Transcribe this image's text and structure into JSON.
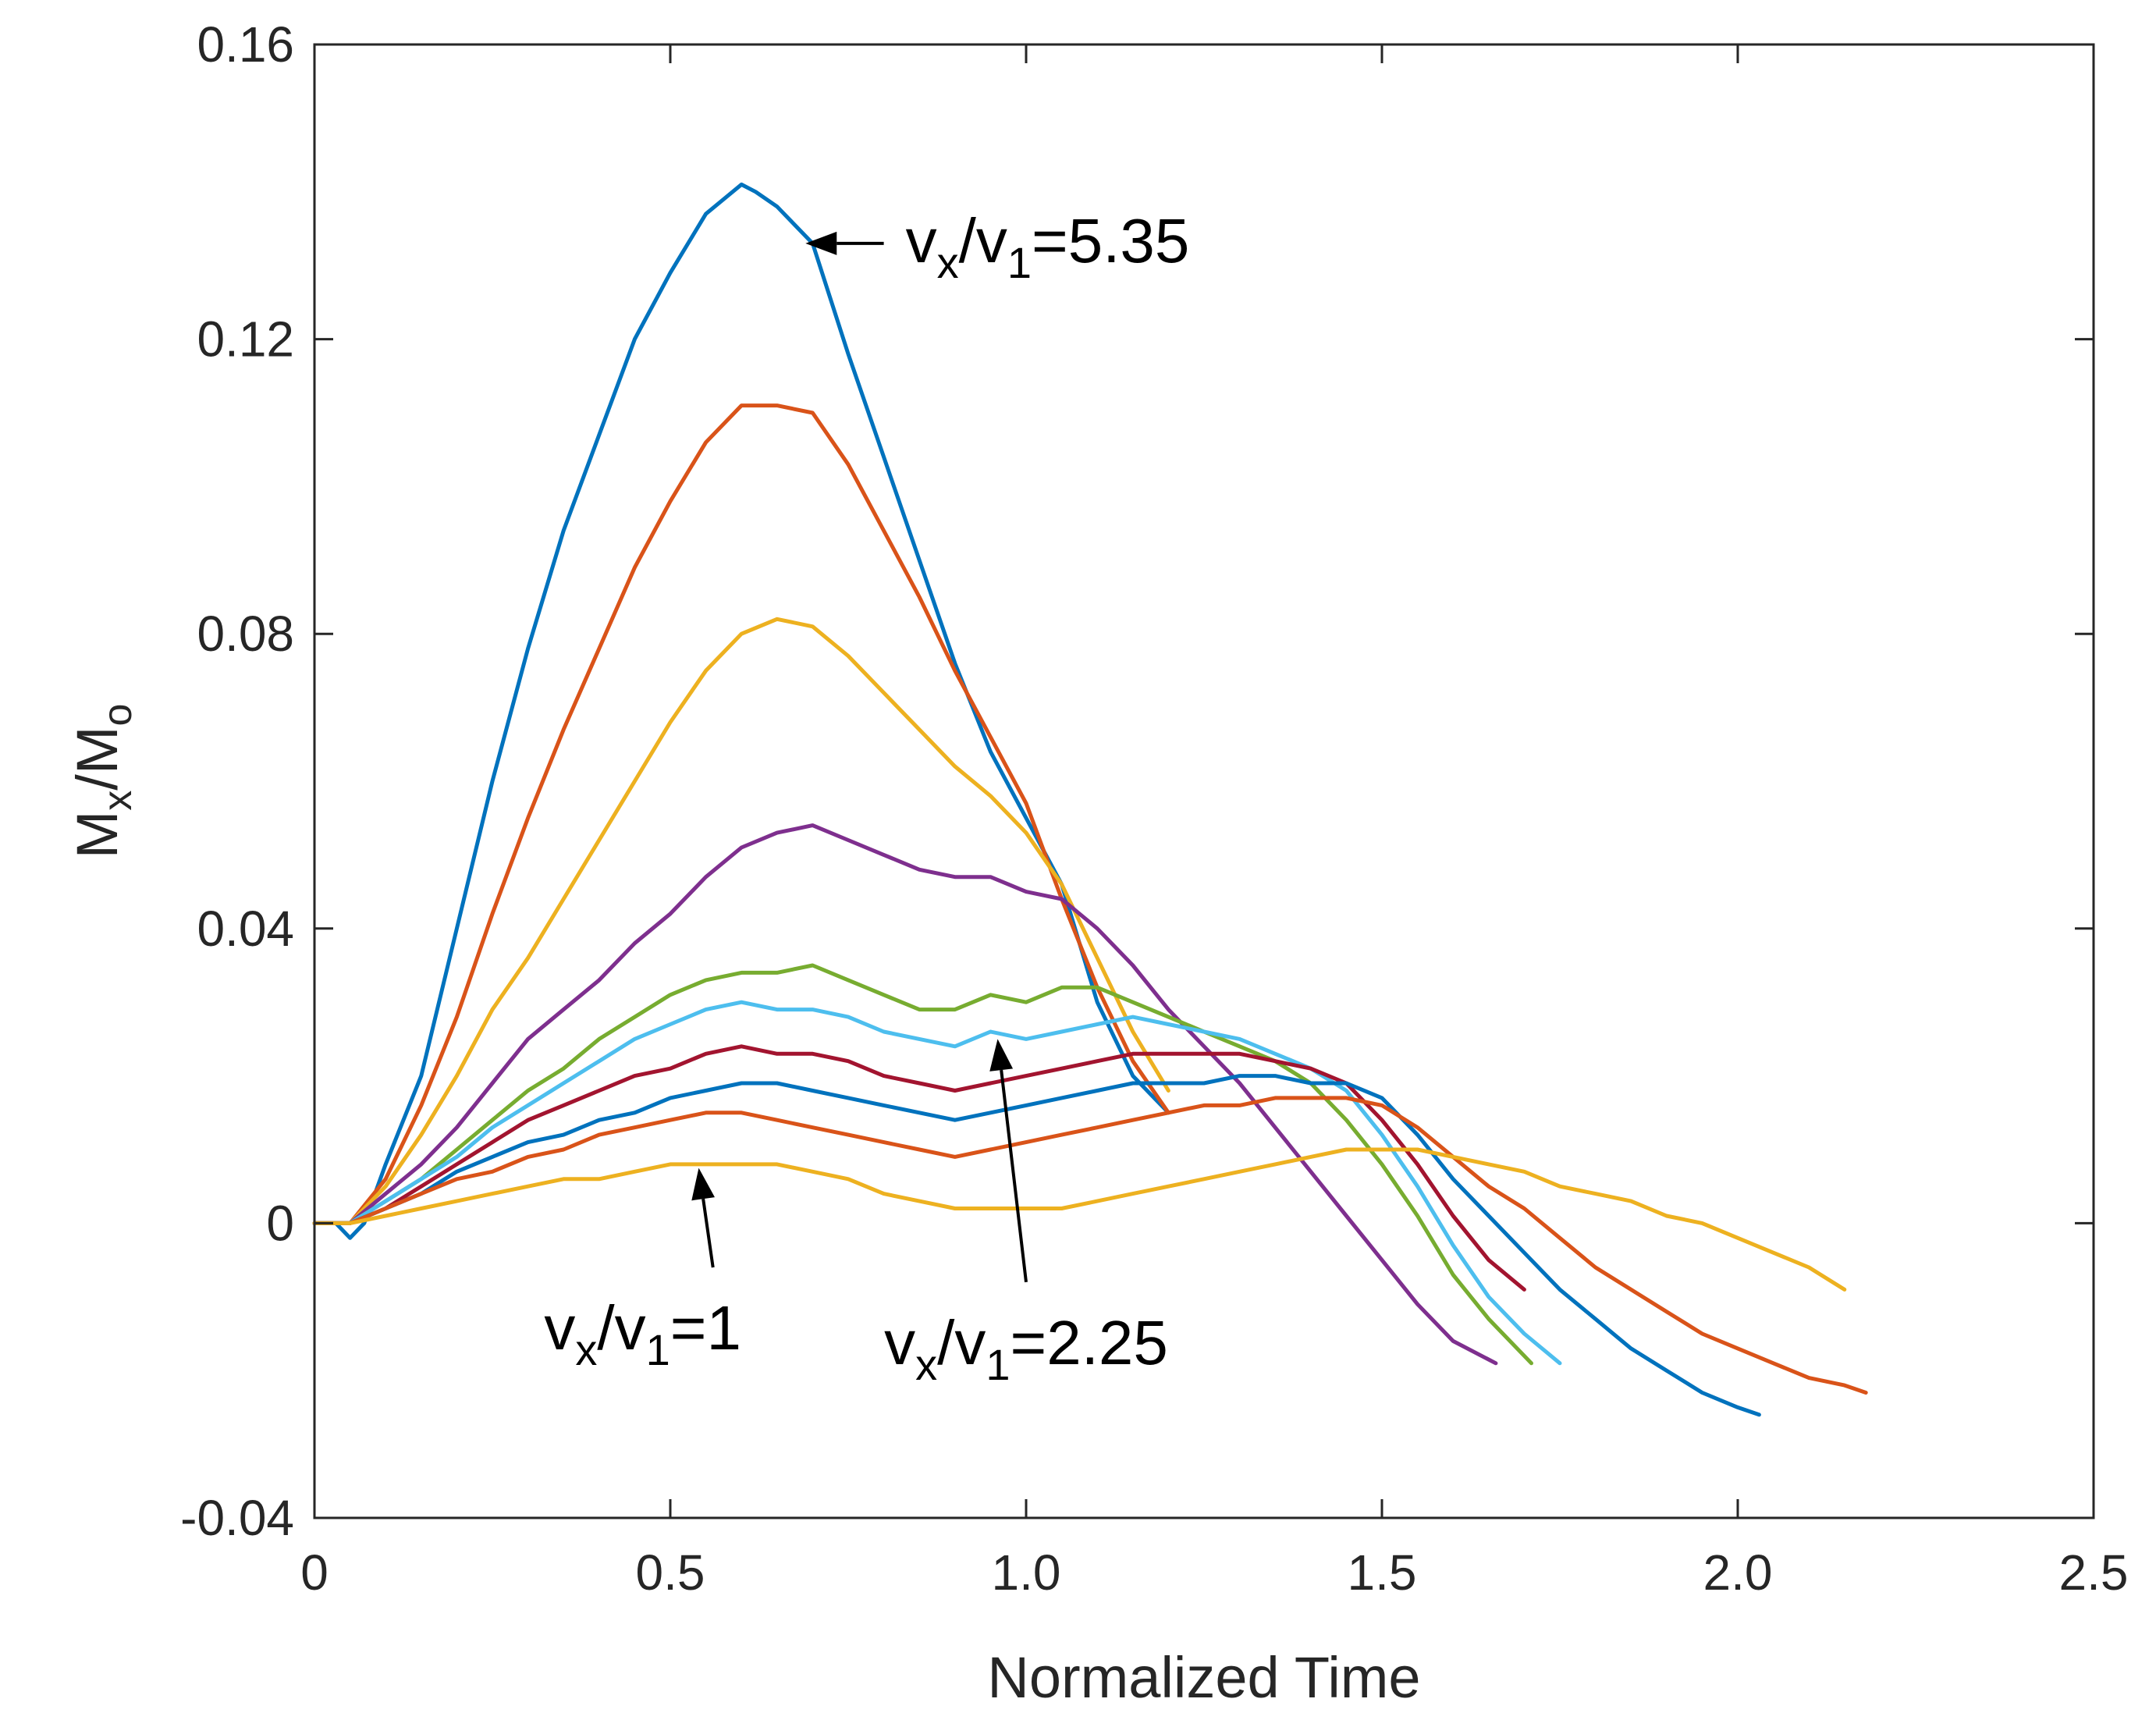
{
  "chart_data": {
    "type": "line",
    "title": "",
    "xlabel": "Normalized Time",
    "ylabel": {
      "main": "M",
      "sub1": "x",
      "mid": "/M",
      "sub2": "o"
    },
    "xlim": [
      0,
      2.5
    ],
    "ylim": [
      -0.04,
      0.16
    ],
    "xticks": [
      "0",
      "0.5",
      "1.0",
      "1.5",
      "2.0",
      "2.5"
    ],
    "yticks": [
      "-0.04",
      "0",
      "0.04",
      "0.08",
      "0.12",
      "0.16"
    ],
    "grid": false,
    "legend": "none",
    "annotations": [
      {
        "main": "v",
        "sub1": "x",
        "mid": "/v",
        "sub2": "1",
        "tail": "=5.35",
        "point": [
          0.69,
          0.133
        ],
        "from": [
          0.8,
          0.133
        ]
      },
      {
        "main": "v",
        "sub1": "x",
        "mid": "/v",
        "sub2": "1",
        "tail": "=2.25",
        "point": [
          0.96,
          0.025
        ],
        "from": [
          1.0,
          -0.008
        ]
      },
      {
        "main": "v",
        "sub1": "x",
        "mid": "/v",
        "sub2": "1",
        "tail": "=1",
        "point": [
          0.54,
          0.0075
        ],
        "from": [
          0.56,
          -0.006
        ]
      }
    ],
    "series": [
      {
        "color": "#0072BD",
        "x": [
          0,
          0.03,
          0.05,
          0.07,
          0.1,
          0.15,
          0.2,
          0.25,
          0.3,
          0.35,
          0.4,
          0.45,
          0.5,
          0.55,
          0.6,
          0.62,
          0.65,
          0.7,
          0.75,
          0.8,
          0.85,
          0.9,
          0.95,
          1.0,
          1.05,
          1.1,
          1.15,
          1.2
        ],
        "y": [
          0,
          0,
          -0.002,
          0,
          0.008,
          0.02,
          0.04,
          0.06,
          0.078,
          0.094,
          0.107,
          0.12,
          0.129,
          0.137,
          0.141,
          0.14,
          0.138,
          0.133,
          0.118,
          0.104,
          0.09,
          0.076,
          0.064,
          0.055,
          0.046,
          0.03,
          0.02,
          0.015
        ]
      },
      {
        "color": "#D95319",
        "x": [
          0,
          0.05,
          0.1,
          0.15,
          0.2,
          0.25,
          0.3,
          0.35,
          0.4,
          0.45,
          0.5,
          0.55,
          0.6,
          0.65,
          0.7,
          0.75,
          0.8,
          0.85,
          0.9,
          0.95,
          1.0,
          1.05,
          1.1,
          1.15,
          1.2
        ],
        "y": [
          0,
          0,
          0.006,
          0.016,
          0.028,
          0.042,
          0.055,
          0.067,
          0.078,
          0.089,
          0.098,
          0.106,
          0.111,
          0.111,
          0.11,
          0.103,
          0.094,
          0.085,
          0.075,
          0.066,
          0.057,
          0.044,
          0.032,
          0.022,
          0.015
        ]
      },
      {
        "color": "#EDB120",
        "x": [
          0,
          0.05,
          0.1,
          0.15,
          0.2,
          0.25,
          0.3,
          0.35,
          0.4,
          0.45,
          0.5,
          0.55,
          0.6,
          0.65,
          0.7,
          0.75,
          0.8,
          0.85,
          0.9,
          0.95,
          1.0,
          1.05,
          1.1,
          1.15,
          1.2
        ],
        "y": [
          0,
          0,
          0.005,
          0.012,
          0.02,
          0.029,
          0.036,
          0.044,
          0.052,
          0.06,
          0.068,
          0.075,
          0.08,
          0.082,
          0.081,
          0.077,
          0.072,
          0.067,
          0.062,
          0.058,
          0.053,
          0.046,
          0.036,
          0.026,
          0.018
        ]
      },
      {
        "color": "#7E2F8E",
        "x": [
          0,
          0.05,
          0.1,
          0.15,
          0.2,
          0.25,
          0.3,
          0.35,
          0.4,
          0.45,
          0.5,
          0.55,
          0.6,
          0.65,
          0.7,
          0.75,
          0.8,
          0.85,
          0.9,
          0.95,
          1.0,
          1.05,
          1.1,
          1.15,
          1.2,
          1.25,
          1.3,
          1.35,
          1.4,
          1.45,
          1.5,
          1.55,
          1.6,
          1.66
        ],
        "y": [
          0,
          0,
          0.004,
          0.008,
          0.013,
          0.019,
          0.025,
          0.029,
          0.033,
          0.038,
          0.042,
          0.047,
          0.051,
          0.053,
          0.054,
          0.052,
          0.05,
          0.048,
          0.047,
          0.047,
          0.045,
          0.044,
          0.04,
          0.035,
          0.029,
          0.024,
          0.019,
          0.013,
          0.007,
          0.001,
          -0.005,
          -0.011,
          -0.016,
          -0.019
        ]
      },
      {
        "color": "#77AC30",
        "x": [
          0,
          0.05,
          0.1,
          0.15,
          0.2,
          0.25,
          0.3,
          0.35,
          0.4,
          0.45,
          0.5,
          0.55,
          0.6,
          0.65,
          0.7,
          0.75,
          0.8,
          0.85,
          0.9,
          0.95,
          1.0,
          1.05,
          1.1,
          1.15,
          1.2,
          1.25,
          1.3,
          1.35,
          1.4,
          1.45,
          1.5,
          1.55,
          1.6,
          1.65,
          1.71
        ],
        "y": [
          0,
          0,
          0.003,
          0.006,
          0.01,
          0.014,
          0.018,
          0.021,
          0.025,
          0.028,
          0.031,
          0.033,
          0.034,
          0.034,
          0.035,
          0.033,
          0.031,
          0.029,
          0.029,
          0.031,
          0.03,
          0.032,
          0.032,
          0.03,
          0.028,
          0.026,
          0.024,
          0.022,
          0.019,
          0.014,
          0.008,
          0.001,
          -0.007,
          -0.013,
          -0.019
        ]
      },
      {
        "color": "#4DBEEE",
        "x": [
          0,
          0.05,
          0.1,
          0.15,
          0.2,
          0.25,
          0.3,
          0.35,
          0.4,
          0.45,
          0.5,
          0.55,
          0.6,
          0.65,
          0.7,
          0.75,
          0.8,
          0.85,
          0.9,
          0.95,
          1.0,
          1.05,
          1.1,
          1.15,
          1.2,
          1.25,
          1.3,
          1.35,
          1.4,
          1.45,
          1.5,
          1.55,
          1.6,
          1.65,
          1.7,
          1.75
        ],
        "y": [
          0,
          0,
          0.003,
          0.006,
          0.009,
          0.013,
          0.016,
          0.019,
          0.022,
          0.025,
          0.027,
          0.029,
          0.03,
          0.029,
          0.029,
          0.028,
          0.026,
          0.025,
          0.024,
          0.026,
          0.025,
          0.026,
          0.027,
          0.028,
          0.027,
          0.026,
          0.025,
          0.023,
          0.021,
          0.018,
          0.012,
          0.005,
          -0.003,
          -0.01,
          -0.015,
          -0.019
        ]
      },
      {
        "color": "#A2142F",
        "x": [
          0,
          0.05,
          0.1,
          0.15,
          0.2,
          0.25,
          0.3,
          0.35,
          0.4,
          0.45,
          0.5,
          0.55,
          0.6,
          0.65,
          0.7,
          0.75,
          0.8,
          0.85,
          0.9,
          0.95,
          1.0,
          1.05,
          1.1,
          1.15,
          1.2,
          1.25,
          1.3,
          1.35,
          1.4,
          1.45,
          1.5,
          1.55,
          1.6,
          1.65,
          1.7
        ],
        "y": [
          0,
          0,
          0.002,
          0.005,
          0.008,
          0.011,
          0.014,
          0.016,
          0.018,
          0.02,
          0.021,
          0.023,
          0.024,
          0.023,
          0.023,
          0.022,
          0.02,
          0.019,
          0.018,
          0.019,
          0.02,
          0.021,
          0.022,
          0.023,
          0.023,
          0.023,
          0.023,
          0.022,
          0.021,
          0.019,
          0.014,
          0.008,
          0.001,
          -0.005,
          -0.009
        ]
      },
      {
        "color": "#0072BD",
        "x": [
          0,
          0.05,
          0.1,
          0.15,
          0.2,
          0.25,
          0.3,
          0.35,
          0.4,
          0.45,
          0.5,
          0.55,
          0.6,
          0.65,
          0.7,
          0.75,
          0.8,
          0.85,
          0.9,
          0.95,
          1.0,
          1.05,
          1.1,
          1.15,
          1.2,
          1.25,
          1.3,
          1.35,
          1.4,
          1.45,
          1.5,
          1.55,
          1.6,
          1.65,
          1.7,
          1.75,
          1.8,
          1.85,
          1.9,
          1.95,
          2.0,
          2.03
        ],
        "y": [
          0,
          0,
          0.002,
          0.004,
          0.007,
          0.009,
          0.011,
          0.012,
          0.014,
          0.015,
          0.017,
          0.018,
          0.019,
          0.019,
          0.018,
          0.017,
          0.016,
          0.015,
          0.014,
          0.015,
          0.016,
          0.017,
          0.018,
          0.019,
          0.019,
          0.019,
          0.02,
          0.02,
          0.019,
          0.019,
          0.017,
          0.012,
          0.006,
          0.001,
          -0.004,
          -0.009,
          -0.013,
          -0.017,
          -0.02,
          -0.023,
          -0.025,
          -0.026
        ]
      },
      {
        "color": "#D95319",
        "x": [
          0,
          0.05,
          0.1,
          0.15,
          0.2,
          0.25,
          0.3,
          0.35,
          0.4,
          0.45,
          0.5,
          0.55,
          0.6,
          0.65,
          0.7,
          0.75,
          0.8,
          0.85,
          0.9,
          0.95,
          1.0,
          1.05,
          1.1,
          1.15,
          1.2,
          1.25,
          1.3,
          1.35,
          1.4,
          1.45,
          1.5,
          1.55,
          1.6,
          1.65,
          1.7,
          1.75,
          1.8,
          1.85,
          1.9,
          1.95,
          2.0,
          2.05,
          2.1,
          2.15,
          2.18
        ],
        "y": [
          0,
          0,
          0.002,
          0.004,
          0.006,
          0.007,
          0.009,
          0.01,
          0.012,
          0.013,
          0.014,
          0.015,
          0.015,
          0.014,
          0.013,
          0.012,
          0.011,
          0.01,
          0.009,
          0.01,
          0.011,
          0.012,
          0.013,
          0.014,
          0.015,
          0.016,
          0.016,
          0.017,
          0.017,
          0.017,
          0.016,
          0.013,
          0.009,
          0.005,
          0.002,
          -0.002,
          -0.006,
          -0.009,
          -0.012,
          -0.015,
          -0.017,
          -0.019,
          -0.021,
          -0.022,
          -0.023
        ]
      },
      {
        "color": "#EDB120",
        "x": [
          0,
          0.05,
          0.1,
          0.15,
          0.2,
          0.25,
          0.3,
          0.35,
          0.4,
          0.45,
          0.5,
          0.55,
          0.6,
          0.65,
          0.7,
          0.75,
          0.8,
          0.85,
          0.9,
          0.95,
          1.0,
          1.05,
          1.1,
          1.15,
          1.2,
          1.25,
          1.3,
          1.35,
          1.4,
          1.45,
          1.5,
          1.55,
          1.6,
          1.65,
          1.7,
          1.75,
          1.8,
          1.85,
          1.9,
          1.95,
          2.0,
          2.05,
          2.1,
          2.15
        ],
        "y": [
          0,
          0,
          0.001,
          0.002,
          0.003,
          0.004,
          0.005,
          0.006,
          0.006,
          0.007,
          0.008,
          0.008,
          0.008,
          0.008,
          0.007,
          0.006,
          0.004,
          0.003,
          0.002,
          0.002,
          0.002,
          0.002,
          0.003,
          0.004,
          0.005,
          0.006,
          0.007,
          0.008,
          0.009,
          0.01,
          0.01,
          0.01,
          0.009,
          0.008,
          0.007,
          0.005,
          0.004,
          0.003,
          0.001,
          0,
          -0.002,
          -0.004,
          -0.006,
          -0.009
        ]
      }
    ]
  }
}
